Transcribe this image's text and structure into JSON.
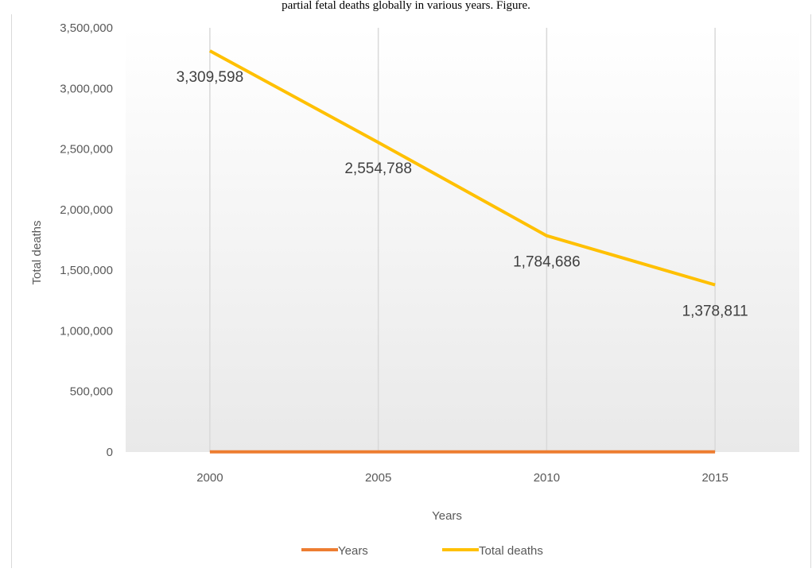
{
  "caption": "partial fetal deaths globally in various years. Figure.",
  "chart_data": {
    "type": "line",
    "title": "",
    "xlabel": "Years",
    "ylabel": "Total deaths",
    "categories": [
      "2000",
      "2005",
      "2010",
      "2015"
    ],
    "ylim": [
      0,
      3500000
    ],
    "yticks": [
      0,
      500000,
      1000000,
      1500000,
      2000000,
      2500000,
      3000000,
      3500000
    ],
    "ytick_labels": [
      "0",
      "500,000",
      "1,000,000",
      "1,500,000",
      "2,000,000",
      "2,500,000",
      "3,000,000",
      "3,500,000"
    ],
    "grid": "vertical",
    "legend_position": "bottom",
    "series": [
      {
        "name": "Years",
        "color": "#ED7D31",
        "values": [
          2000,
          2005,
          2010,
          2015
        ],
        "data_labels": false
      },
      {
        "name": "Total deaths",
        "color": "#FFC000",
        "values": [
          3309598,
          2554788,
          1784686,
          1378811
        ],
        "data_labels": true,
        "labels": [
          "3,309,598",
          "2,554,788",
          "1,784,686",
          "1,378,811"
        ]
      }
    ]
  }
}
